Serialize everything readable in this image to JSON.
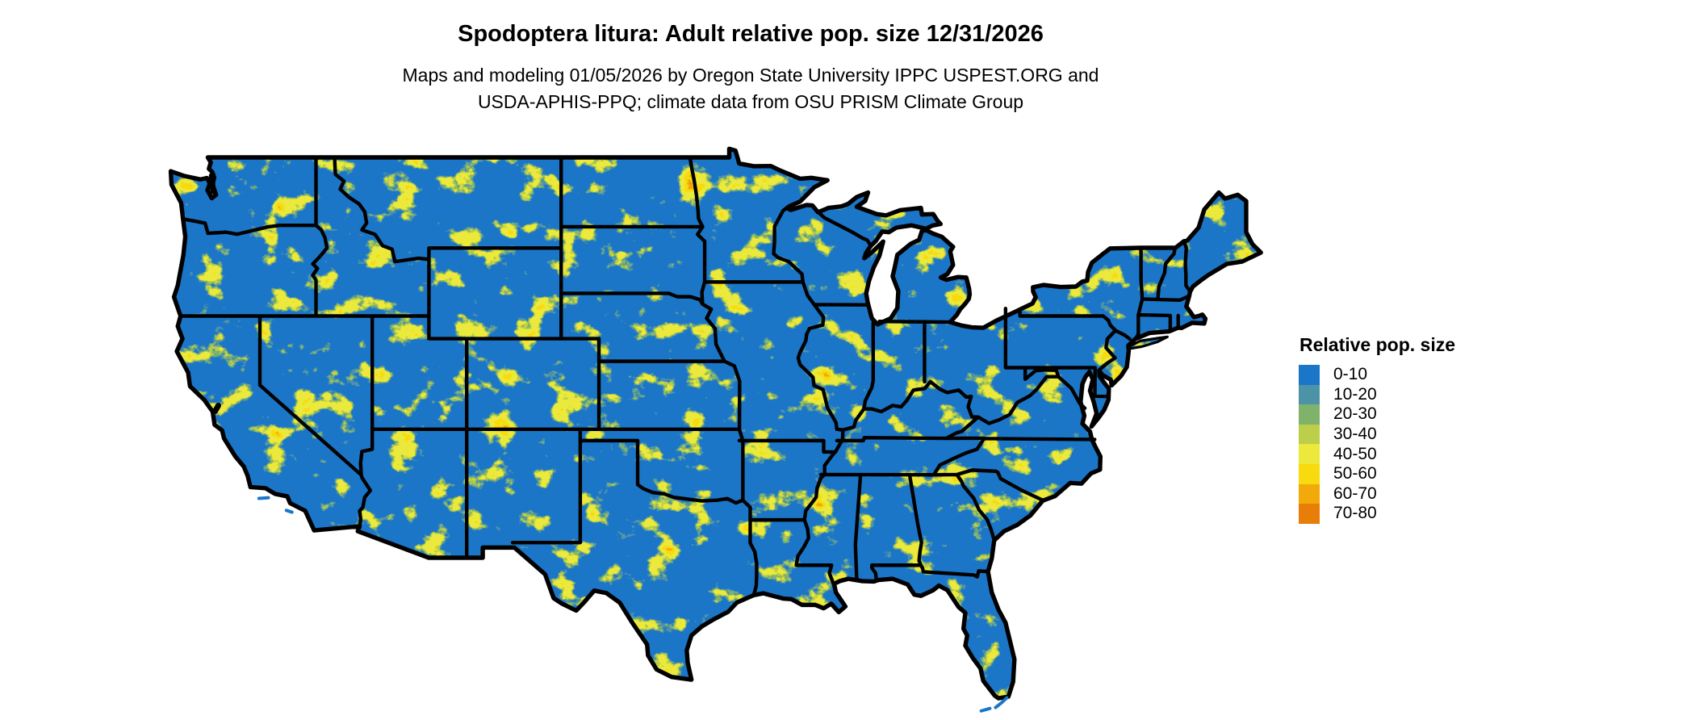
{
  "header": {
    "title": "Spodoptera litura: Adult relative pop. size 12/31/2026",
    "subtitle_line1": "Maps and modeling 01/05/2026 by Oregon State University IPPC USPEST.ORG and",
    "subtitle_line2": "USDA-APHIS-PPQ; climate data from OSU PRISM Climate Group"
  },
  "legend": {
    "title": "Relative pop. size",
    "entries": [
      {
        "label": "0-10",
        "color": "#1b76c9"
      },
      {
        "label": "10-20",
        "color": "#4d93a8"
      },
      {
        "label": "20-30",
        "color": "#7fb36b"
      },
      {
        "label": "30-40",
        "color": "#bdce4b"
      },
      {
        "label": "40-50",
        "color": "#ece93c"
      },
      {
        "label": "50-60",
        "color": "#f8da0e"
      },
      {
        "label": "60-70",
        "color": "#f2a90a"
      },
      {
        "label": "70-80",
        "color": "#e87e08"
      }
    ]
  },
  "map": {
    "border_color": "#000000",
    "water_color": "#ffffff"
  }
}
